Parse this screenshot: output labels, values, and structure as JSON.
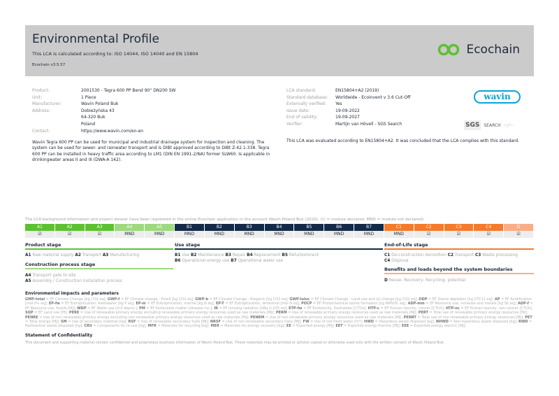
{
  "header": {
    "title": "Environmental Profile",
    "subtitle": "This LCA is calculated according to: ISO 14044, ISO 14040 and EN 15804",
    "version": "Ecochain v3.5.57",
    "logo_text": "Ecochain"
  },
  "product_info": [
    {
      "label": "Product:",
      "value": "2001530 - Tegra 600 PP Bend 90° DN200 SW"
    },
    {
      "label": "Unit:",
      "value": "1 Piece"
    },
    {
      "label": "Manufacturer:",
      "value": "Wavin Poland Buk"
    },
    {
      "label": "Address:",
      "value": "Dobieżyńska 43\n64-320 Buk\nPoland"
    },
    {
      "label": "Contact:",
      "value": "https://www.wavin.com/en-en"
    }
  ],
  "description": "Wavin Tegra 600 PP can be used for municipal and industrial drainage system for inspection and cleaning. The system can be used for sewer- and rainwater transport and is DIBt approved according to DIBt Z-42.1-338. Tegra 600 PP can be installed in heavy traffic area according to LM1 (DIN EN 1991-2/NA) former SLW60. Is applicable in drinkingwater areas II and III (DWA-A 142).",
  "lca_info": [
    {
      "label": "LCA standard:",
      "value": "EN15804+A2 (2019)"
    },
    {
      "label": "Standard database:",
      "value": "Worldwide - Ecoinvent v 3.6 Cut-Off"
    },
    {
      "label": "Externally verified:",
      "value": "Yes"
    },
    {
      "label": "Issue date:",
      "value": "19-09-2022"
    },
    {
      "label": "End of validity:",
      "value": "19-09-2027"
    },
    {
      "label": "Verifier:",
      "value": "Martijn van Hövell - SGS Search"
    }
  ],
  "evaluation": "This LCA was evaluated according to EN15804+A2. It was concluded that the LCA complies with this standard.",
  "wavin_logo": "wavin",
  "sgs_logo": {
    "a": "SGS",
    "b": "SEARCH"
  },
  "modules_note": "The LCA background information and project dossier have been registered in the online Ecochain application in the account Wavin Poland Buk (2020). (☑ = module declared, MND = module not declared).",
  "modules": [
    {
      "code": "A1",
      "value": "☑",
      "color": "#5cc132"
    },
    {
      "code": "A2",
      "value": "☑",
      "color": "#5cc132"
    },
    {
      "code": "A3",
      "value": "☑",
      "color": "#5cc132"
    },
    {
      "code": "A4",
      "value": "MND",
      "color": "#9dd97e"
    },
    {
      "code": "A5",
      "value": "MND",
      "color": "#9dd97e"
    },
    {
      "code": "B1",
      "value": "MND",
      "color": "#132a47"
    },
    {
      "code": "B2",
      "value": "MND",
      "color": "#132a47"
    },
    {
      "code": "B3",
      "value": "MND",
      "color": "#132a47"
    },
    {
      "code": "B4",
      "value": "MND",
      "color": "#132a47"
    },
    {
      "code": "B5",
      "value": "MND",
      "color": "#132a47"
    },
    {
      "code": "B6",
      "value": "MND",
      "color": "#132a47"
    },
    {
      "code": "B7",
      "value": "MND",
      "color": "#132a47"
    },
    {
      "code": "C1",
      "value": "MND",
      "color": "#f47b2b"
    },
    {
      "code": "C2",
      "value": "☑",
      "color": "#f47b2b"
    },
    {
      "code": "C3",
      "value": "☑",
      "color": "#f47b2b"
    },
    {
      "code": "C4",
      "value": "☑",
      "color": "#f47b2b"
    },
    {
      "code": "D",
      "value": "☑",
      "color": "#f8ae85"
    }
  ],
  "stages": {
    "product": {
      "title": "Product stage",
      "items": [
        [
          "A1",
          "Raw material supply"
        ],
        [
          "A2",
          "Transport"
        ],
        [
          "A3",
          "Manufacturing"
        ]
      ]
    },
    "construction": {
      "title": "Construction process stage",
      "items": [
        [
          "A4",
          "Transport gate to site"
        ],
        [
          "A5",
          "Assembly / Construction installation process"
        ]
      ]
    },
    "use": {
      "title": "Use stage",
      "items": [
        [
          "B1",
          "Use"
        ],
        [
          "B2",
          "Maintenance"
        ],
        [
          "B3",
          "Repair"
        ],
        [
          "B4",
          "Replacement"
        ],
        [
          "B5",
          "Refurbishment"
        ],
        [
          "B6",
          "Operational energy use"
        ],
        [
          "B7",
          "Operational water use"
        ]
      ]
    },
    "eol": {
      "title": "End-of-Life stage",
      "items": [
        [
          "C1",
          "De-construction demolition"
        ],
        [
          "C2",
          "Transport"
        ],
        [
          "C3",
          "Waste processing"
        ],
        [
          "C4",
          "Disposal"
        ]
      ]
    },
    "benefits": {
      "title": "Benefits and loads beyond the system boundaries",
      "items": [
        [
          "D",
          "Reuse- Recovery- Recycling- potential"
        ]
      ]
    }
  },
  "impacts_title": "Environmental impacts and parameters",
  "abbreviations": [
    [
      "GMP-total",
      "EF Climate Change [kg CO2 eq]"
    ],
    [
      "GWP-f",
      "EF Climate change - Fossil [kg CO2 eq]"
    ],
    [
      "GWP-b",
      "EF Climate Change - Biogenic [kg CO2 eq]"
    ],
    [
      "GWP-luluc",
      "EF Climate Change - Land use and LU change [kg CO2 eq]"
    ],
    [
      "ODP",
      "EF Ozone depletion [kg CFC11 eq]"
    ],
    [
      "AP",
      "EF Acidification [mol H+ eq]"
    ],
    [
      "EP-fw",
      "EF Eutrophication, freshwater [kg P eq]"
    ],
    [
      "EP-m",
      "EF Eutrophication, marine [kg N eq]"
    ],
    [
      "EP-T",
      "EF Eutrophication, terrestrial [mol N eq]"
    ],
    [
      "POCP",
      "EF Photochemical ozone formation [kg NMVOC eq]"
    ],
    [
      "ADP-mm",
      "EF Resource use, minerals and metals [kg Sb eq]"
    ],
    [
      "ADP-f",
      "EF Resource use, fossils [MJ]"
    ],
    [
      "WDP",
      "EF Water use [m3 depriv.]"
    ],
    [
      "PM",
      "EF Particulate matter [disease inc.]"
    ],
    [
      "IR",
      "EF Ionising radiation [kBq U-235 eq]"
    ],
    [
      "ETP-fw",
      "EF Ecotoxicity, freshwater [CTUe]"
    ],
    [
      "HTP-c",
      "EF Human toxicity, cancer [CTUh]"
    ],
    [
      "HTP-nc",
      "EF Human toxicity, non-cancer [CTUh]"
    ],
    [
      "SQP",
      "EF Land use [Pt]"
    ],
    [
      "PERE",
      "Use of renewable primary energy excluding renewable primary energy resources used as raw materials [MJ]"
    ],
    [
      "PERM",
      "Use of renewable primary energy resources used as raw materials [MJ]"
    ],
    [
      "PERT",
      "Total use of renewable primary energy resources [MJ]"
    ],
    [
      "PENRE",
      "Use of non renewable primary energy excluding non-renewable primary energy resources used as raw materials [MJ]"
    ],
    [
      "PENRM",
      "Use of non-renewable primary energy resources used as raw materials [MJ]"
    ],
    [
      "PENRT",
      "Total use of non-renewable primary energy resources [MJ]"
    ],
    [
      "PET",
      "Total energy [MJ]"
    ],
    [
      "SM",
      "Use of secondary material [kg]"
    ],
    [
      "RSF",
      "Use of renewable secondary fuels [MJ]"
    ],
    [
      "NRSF",
      "Use of non-renewable secondary fuels [MJ]"
    ],
    [
      "FW",
      "Use of net fresh water [m³]"
    ],
    [
      "HWD",
      "Hazardous waste disposed [kg]"
    ],
    [
      "NHWD",
      "Non-hazardous waste disposed [kg]"
    ],
    [
      "RWD",
      "Radioactive waste disposed [kg]"
    ],
    [
      "CRU",
      "Components for re-use [kg]"
    ],
    [
      "MFR",
      "Materials for recycling [kg]"
    ],
    [
      "MER",
      "Materials for energy recovery [kg]"
    ],
    [
      "EE",
      "Exported energy [MJ]"
    ],
    [
      "EET",
      "Exported energy thermic [MJ]"
    ],
    [
      "EEE",
      "Exported energy electric [MJ]"
    ]
  ],
  "confidentiality": {
    "title": "Statement of Confidentiality",
    "text": "This document and supporting material contain confidential and proprietary business information of Wavin Poland Buk. These materials may be printed or (photo) copied or otherwise used only with the written consent of Wavin Poland Buk."
  }
}
